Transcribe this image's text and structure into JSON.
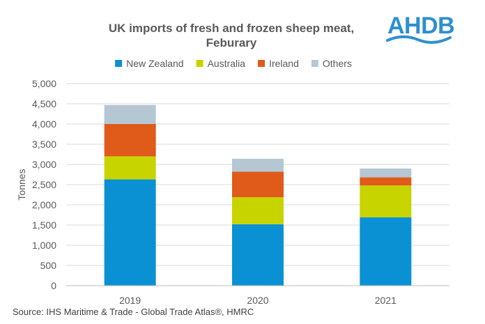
{
  "logo": {
    "text": "AHDB",
    "color": "#2e8fd0"
  },
  "source": "Source: IHS Maritime & Trade - Global Trade Atlas®, HMRC",
  "chart_data": {
    "type": "bar",
    "stacked": true,
    "title_lines": [
      "UK imports of fresh and frozen sheep meat,",
      "Feburary"
    ],
    "xlabel": "",
    "ylabel": "Tonnes",
    "ylim": [
      0,
      5000
    ],
    "yticks": [
      0,
      500,
      1000,
      1500,
      2000,
      2500,
      3000,
      3500,
      4000,
      4500,
      5000
    ],
    "ytick_labels": [
      "0",
      "500",
      "1,000",
      "1,500",
      "2,000",
      "2,500",
      "3,000",
      "3,500",
      "4,000",
      "4,500",
      "5,000"
    ],
    "grid": true,
    "legend_position": "top",
    "categories": [
      "2019",
      "2020",
      "2021"
    ],
    "series": [
      {
        "name": "New Zealand",
        "color": "#0a91d4",
        "values": [
          2630,
          1520,
          1690
        ]
      },
      {
        "name": "Australia",
        "color": "#c8d400",
        "values": [
          570,
          670,
          790
        ]
      },
      {
        "name": "Ireland",
        "color": "#e05a1a",
        "values": [
          800,
          630,
          200
        ]
      },
      {
        "name": "Others",
        "color": "#b4c7d3",
        "values": [
          470,
          320,
          220
        ]
      }
    ]
  }
}
